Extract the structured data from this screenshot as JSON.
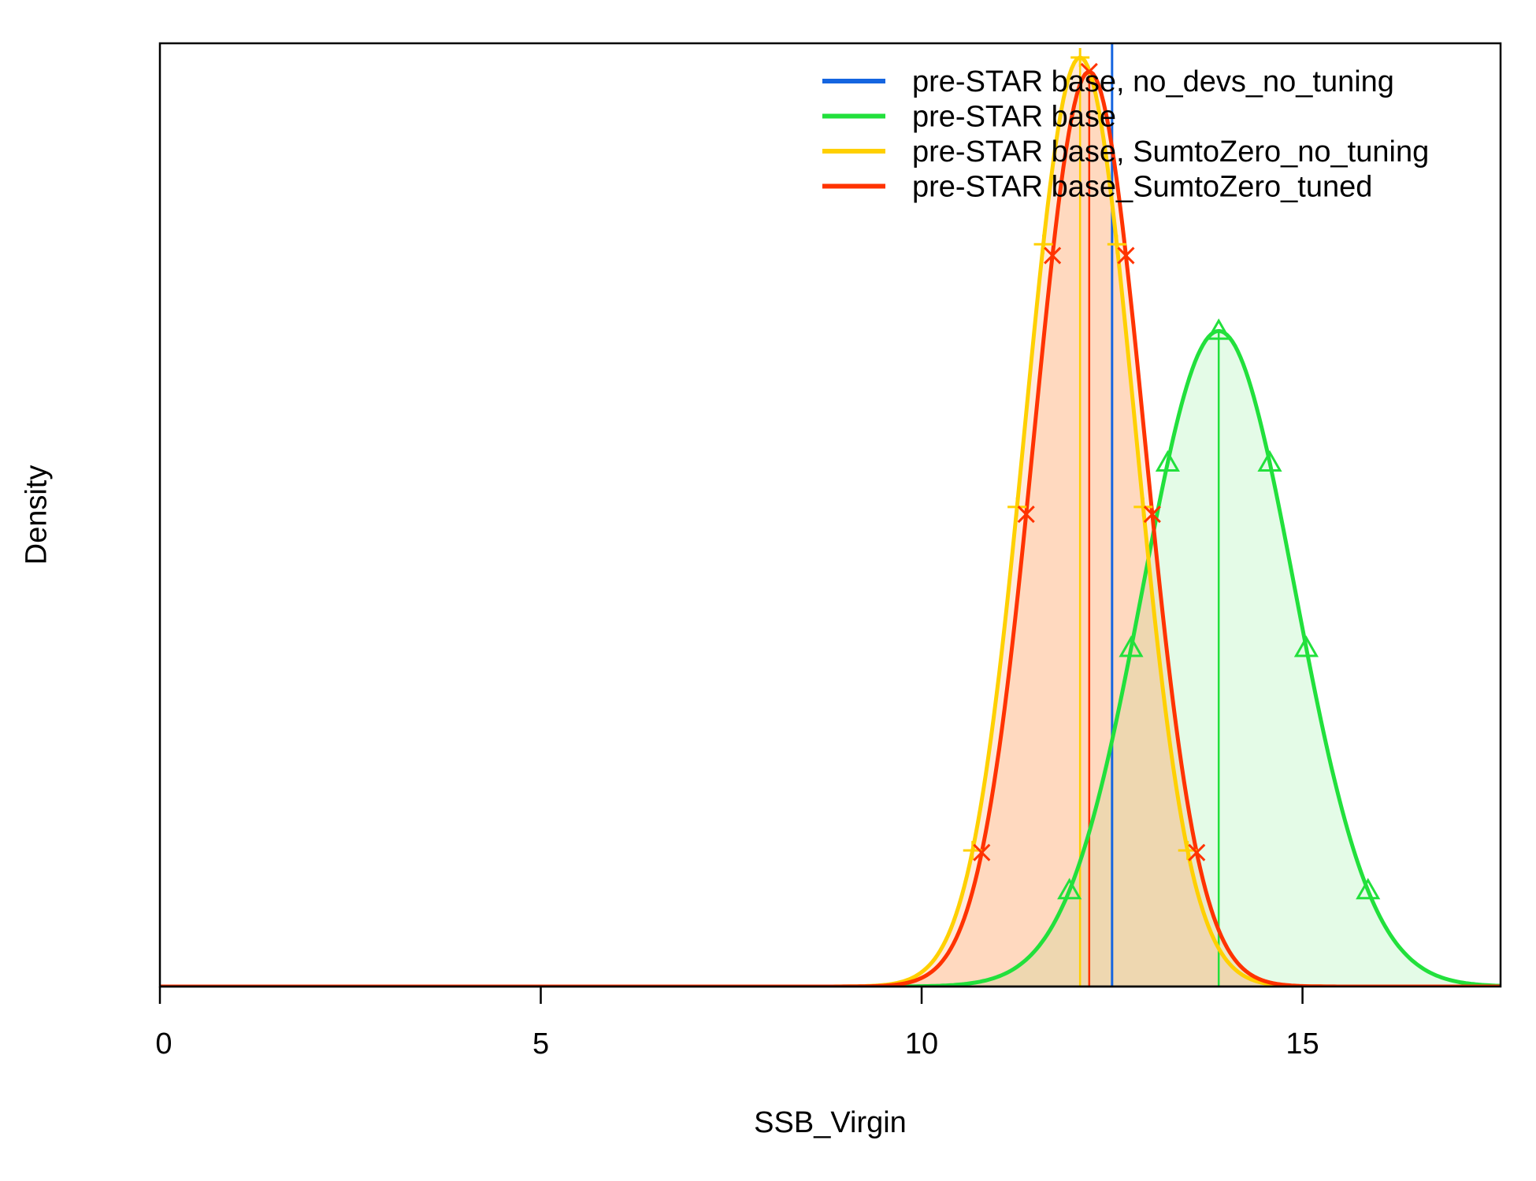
{
  "chart_data": {
    "type": "line",
    "title": "",
    "xlabel": "SSB_Virgin",
    "ylabel": "Density",
    "xlim": [
      0,
      17.6
    ],
    "x_ticks": [
      0,
      5,
      10,
      15
    ],
    "grid": false,
    "legend_position": "top-right",
    "vlines": [
      {
        "name": "pre-STAR base, no_devs_no_tuning",
        "x": 12.5,
        "color": "#1565e0"
      }
    ],
    "series": [
      {
        "name": "pre-STAR base, no_devs_no_tuning",
        "color": "#1565e0",
        "kind": "point-estimate",
        "x": 12.5
      },
      {
        "name": "pre-STAR base",
        "color": "#22e03c",
        "fill": "rgba(34,224,60,0.12)",
        "mean": 13.9,
        "sd": 1.0,
        "peak_rel": 0.695,
        "marker": "triangle",
        "interval_quantiles": [
          0.025,
          0.975
        ]
      },
      {
        "name": "pre-STAR base, SumtoZero_no_tuning",
        "color": "#ffd000",
        "fill": "rgba(255,160,90,0.22)",
        "mean": 12.08,
        "sd": 0.72,
        "peak_rel": 0.985,
        "marker": "plus",
        "interval_quantiles": [
          0.025,
          0.975
        ]
      },
      {
        "name": "pre-STAR base_SumtoZero_tuned",
        "color": "#ff3300",
        "fill": "rgba(255,160,90,0.22)",
        "mean": 12.2,
        "sd": 0.72,
        "peak_rel": 0.97,
        "marker": "x",
        "interval_quantiles": [
          0.025,
          0.975
        ]
      }
    ]
  }
}
